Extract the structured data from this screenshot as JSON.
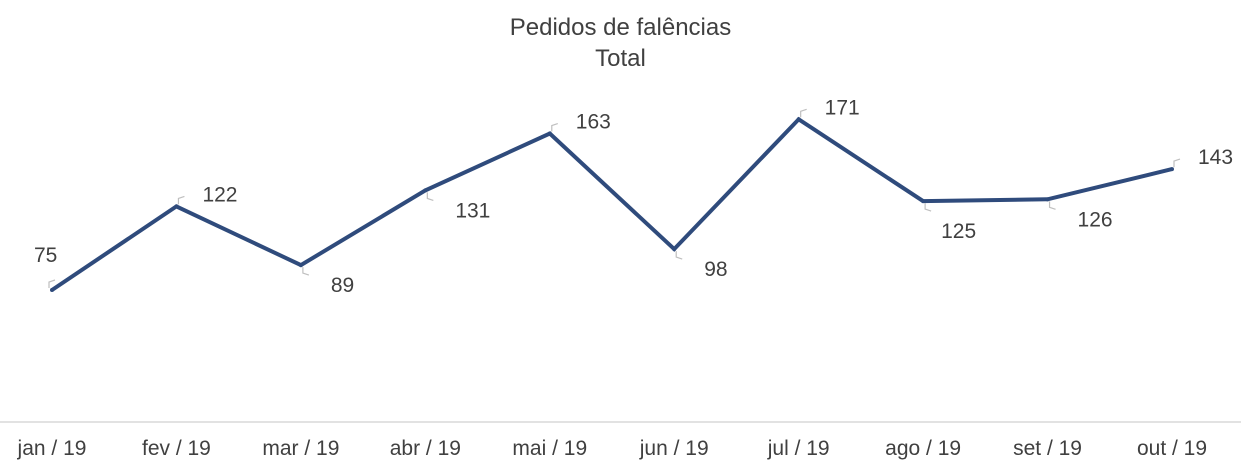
{
  "chart_data": {
    "type": "line",
    "title": "Pedidos de falências",
    "subtitle": "Total",
    "categories": [
      "jan / 19",
      "fev / 19",
      "mar / 19",
      "abr / 19",
      "mai / 19",
      "jun / 19",
      "jul / 19",
      "ago / 19",
      "set / 19",
      "out / 19"
    ],
    "series": [
      {
        "values": [
          75,
          122,
          89,
          131,
          163,
          98,
          171,
          125,
          126,
          143
        ]
      }
    ],
    "data_labels": true,
    "grid": false,
    "legend": "none",
    "colors": {
      "line": "#2f4b7c",
      "text": "#404040",
      "axis": "#d9d9d9",
      "leader": "#bfbfbf"
    }
  }
}
